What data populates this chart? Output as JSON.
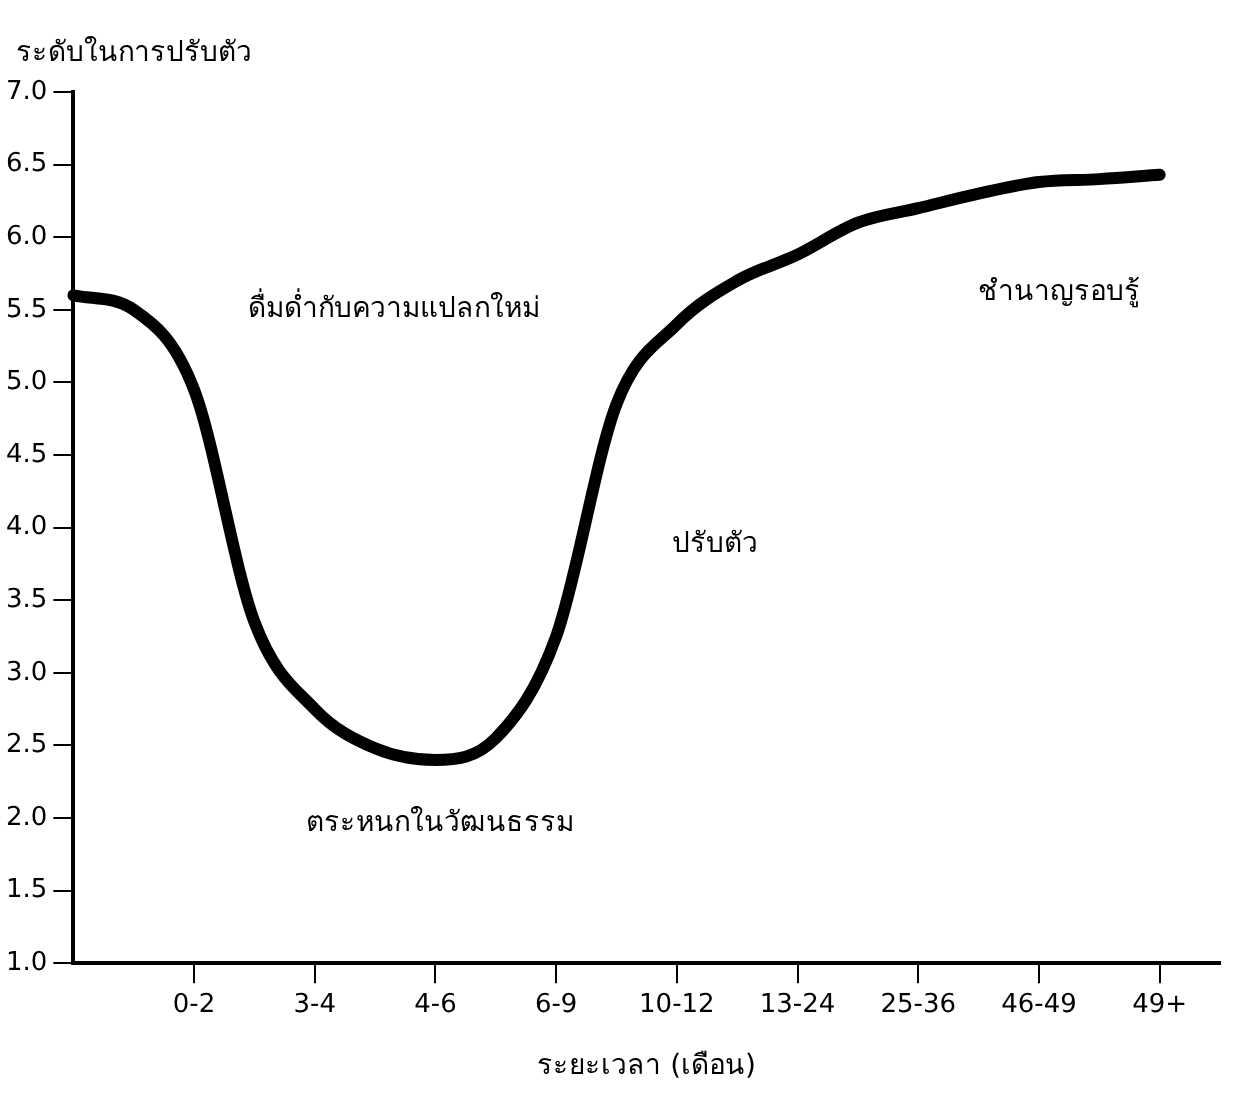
{
  "chart_data": {
    "type": "line",
    "xlabel": "ระยะเวลา (เดือน)",
    "ylabel": "ระดับในการปรับตัว",
    "categories": [
      null,
      null,
      "0-2",
      null,
      "3-4",
      null,
      "4-6",
      null,
      "6-9",
      null,
      "10-12",
      null,
      "13-24",
      null,
      "25-36",
      null,
      "46-49",
      null,
      "49+",
      null
    ],
    "series": [
      {
        "color": "#000000",
        "values": [
          5.6,
          5.5,
          4.95,
          3.35,
          2.75,
          2.48,
          2.4,
          2.55,
          3.25,
          4.85,
          5.4,
          5.7,
          5.88,
          6.1,
          6.2,
          6.3,
          6.38,
          6.4,
          6.43,
          null
        ]
      }
    ],
    "ylim": [
      1,
      7
    ],
    "yticks": [
      {
        "value": 1,
        "label": "1.0"
      },
      {
        "value": 1.5,
        "label": "1.5"
      },
      {
        "value": 2,
        "label": "2.0"
      },
      {
        "value": 2.5,
        "label": "2.5"
      },
      {
        "value": 3,
        "label": "3.0"
      },
      {
        "value": 3.5,
        "label": "3.5"
      },
      {
        "value": 4,
        "label": "4.0"
      },
      {
        "value": 4.5,
        "label": "4.5"
      },
      {
        "value": 5,
        "label": "5.0"
      },
      {
        "value": 5.5,
        "label": "5.5"
      },
      {
        "value": 6,
        "label": "6.0"
      },
      {
        "value": 6.5,
        "label": "6.5"
      },
      {
        "value": 7,
        "label": "7.0"
      }
    ],
    "annotations": [
      "ดื่มด่ำกับความแปลกใหม่",
      "ตระหนกในวัฒนธรรม",
      "ปรับตัว",
      "ชำนาญรอบรู้"
    ],
    "grid": false,
    "legend": false,
    "marker": "none",
    "line_style": "solid"
  }
}
